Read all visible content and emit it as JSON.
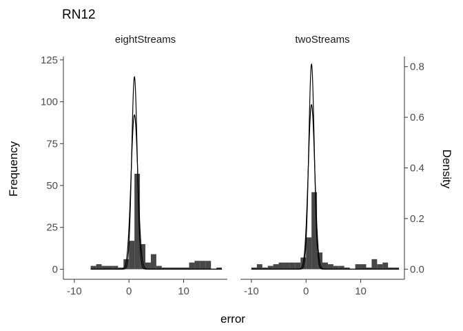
{
  "chart_data": {
    "type": "bar",
    "title": "RN12",
    "xlabel": "error",
    "ylabel": "Frequency",
    "ylabel_right": "Density",
    "xlim": [
      -12,
      18
    ],
    "xticks": [
      -10,
      0,
      10
    ],
    "ylim": [
      -6,
      127
    ],
    "yticks": [
      0,
      25,
      50,
      75,
      100,
      125
    ],
    "ylim_right": [
      -0.04,
      0.84
    ],
    "yticks_right": [
      0.0,
      0.2,
      0.4,
      0.6,
      0.8
    ],
    "bin_width": 1,
    "grid": false,
    "panels": [
      {
        "name": "eightStreams",
        "bins": [
          {
            "x0": -7,
            "count": 2
          },
          {
            "x0": -6,
            "count": 3
          },
          {
            "x0": -5,
            "count": 2
          },
          {
            "x0": -4,
            "count": 2
          },
          {
            "x0": -3,
            "count": 2
          },
          {
            "x0": -2,
            "count": 1
          },
          {
            "x0": -1,
            "count": 6
          },
          {
            "x0": 0,
            "count": 17
          },
          {
            "x0": 1,
            "count": 57
          },
          {
            "x0": 2,
            "count": 15
          },
          {
            "x0": 3,
            "count": 4
          },
          {
            "x0": 4,
            "count": 9
          },
          {
            "x0": 5,
            "count": 2
          },
          {
            "x0": 6,
            "count": 1
          },
          {
            "x0": 7,
            "count": 1
          },
          {
            "x0": 8,
            "count": 1
          },
          {
            "x0": 9,
            "count": 1
          },
          {
            "x0": 10,
            "count": 1
          },
          {
            "x0": 11,
            "count": 4
          },
          {
            "x0": 12,
            "count": 5
          },
          {
            "x0": 13,
            "count": 5
          },
          {
            "x0": 14,
            "count": 5
          },
          {
            "x0": 15,
            "count": 0
          },
          {
            "x0": 16,
            "count": 1
          }
        ],
        "density_curves": [
          {
            "mean": 1.0,
            "sd": 0.5,
            "peak_density": 0.76
          },
          {
            "mean": 1.0,
            "sd": 0.62,
            "peak_density": 0.61
          }
        ]
      },
      {
        "name": "twoStreams",
        "bins": [
          {
            "x0": -10,
            "count": 1
          },
          {
            "x0": -9,
            "count": 3
          },
          {
            "x0": -8,
            "count": 1
          },
          {
            "x0": -7,
            "count": 2
          },
          {
            "x0": -6,
            "count": 3
          },
          {
            "x0": -5,
            "count": 4
          },
          {
            "x0": -4,
            "count": 4
          },
          {
            "x0": -3,
            "count": 4
          },
          {
            "x0": -2,
            "count": 4
          },
          {
            "x0": -1,
            "count": 7
          },
          {
            "x0": 0,
            "count": 19
          },
          {
            "x0": 1,
            "count": 46
          },
          {
            "x0": 2,
            "count": 10
          },
          {
            "x0": 3,
            "count": 4
          },
          {
            "x0": 4,
            "count": 3
          },
          {
            "x0": 5,
            "count": 2
          },
          {
            "x0": 6,
            "count": 2
          },
          {
            "x0": 7,
            "count": 1
          },
          {
            "x0": 8,
            "count": 0
          },
          {
            "x0": 9,
            "count": 3
          },
          {
            "x0": 10,
            "count": 3
          },
          {
            "x0": 11,
            "count": 1
          },
          {
            "x0": 12,
            "count": 6
          },
          {
            "x0": 13,
            "count": 3
          },
          {
            "x0": 14,
            "count": 4
          },
          {
            "x0": 15,
            "count": 1
          },
          {
            "x0": 16,
            "count": 1
          }
        ],
        "density_curves": [
          {
            "mean": 1.0,
            "sd": 0.5,
            "peak_density": 0.81
          },
          {
            "mean": 1.0,
            "sd": 0.6,
            "peak_density": 0.65
          }
        ]
      }
    ]
  },
  "colors": {
    "bar_fill": "#474747",
    "curve": "#000000",
    "axis": "#333333",
    "tick_text": "#4d4d4d",
    "background": "#ffffff"
  }
}
